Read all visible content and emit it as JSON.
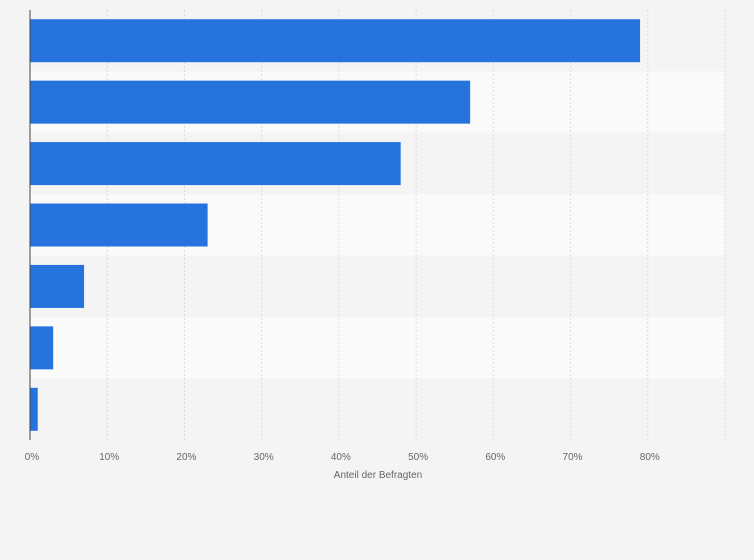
{
  "chart_data": {
    "type": "bar",
    "orientation": "horizontal",
    "categories": [
      "",
      "",
      "",
      "",
      "",
      "",
      ""
    ],
    "values": [
      79,
      57,
      48,
      23,
      7,
      3,
      1
    ],
    "xlabel": "Anteil der Befragten",
    "xlim": [
      0,
      90
    ],
    "x_ticks": [
      0,
      10,
      20,
      30,
      40,
      50,
      60,
      70,
      80
    ],
    "x_tick_labels": [
      "0%",
      "10%",
      "20%",
      "30%",
      "40%",
      "50%",
      "60%",
      "70%",
      "80%"
    ],
    "grid": true,
    "bar_color": "#2673dd"
  }
}
